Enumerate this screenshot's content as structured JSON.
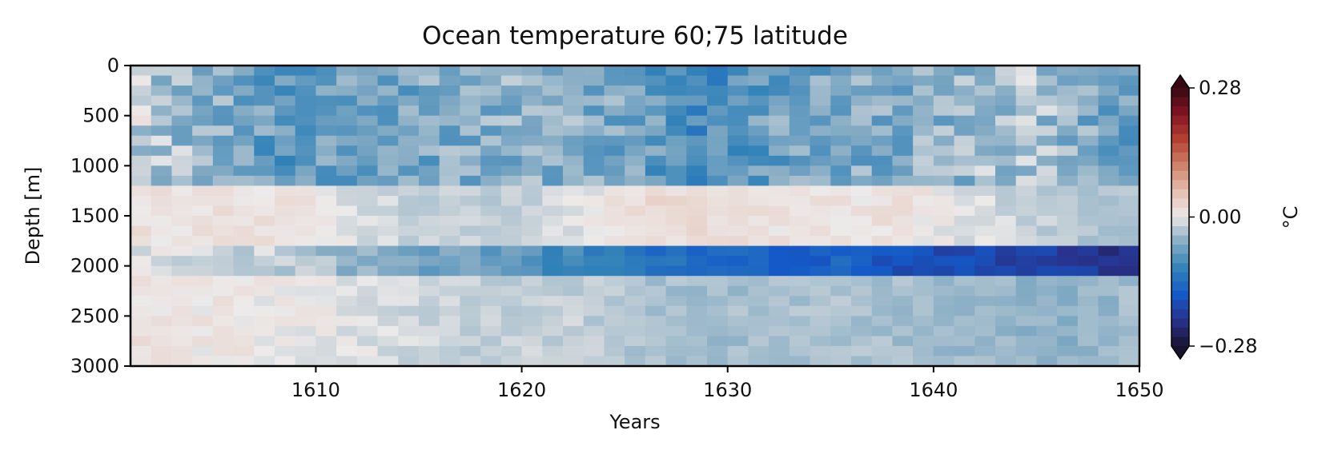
{
  "chart_data": {
    "type": "heatmap",
    "title": "Ocean temperature 60;75 latitude",
    "xlabel": "Years",
    "ylabel": "Depth [m]",
    "x_range": [
      1601,
      1650
    ],
    "y_range": [
      0,
      3000
    ],
    "y_inverted": true,
    "x_ticks": [
      1610,
      1620,
      1630,
      1640,
      1650
    ],
    "y_ticks": [
      0,
      500,
      1000,
      1500,
      2000,
      2500,
      3000
    ],
    "colorbar": {
      "label": "°C",
      "min": -0.28,
      "max": 0.28,
      "tick_labels": [
        "0.28",
        "0.00",
        "−0.28"
      ],
      "tick_values": [
        0.28,
        0.0,
        -0.28
      ],
      "extend": "both",
      "colormap": "balance (diverging blue–white–red)"
    },
    "depth_levels_m": [
      0,
      100,
      200,
      300,
      400,
      500,
      600,
      700,
      800,
      900,
      1000,
      1100,
      1200,
      1300,
      1400,
      1500,
      1600,
      1700,
      1800,
      1900,
      2000,
      2100,
      2200,
      2300,
      2400,
      2500,
      2600,
      2700,
      2800,
      2900
    ],
    "years": [
      1601,
      1602,
      1603,
      1604,
      1605,
      1606,
      1607,
      1608,
      1609,
      1610,
      1611,
      1612,
      1613,
      1614,
      1615,
      1616,
      1617,
      1618,
      1619,
      1620,
      1621,
      1622,
      1623,
      1624,
      1625,
      1626,
      1627,
      1628,
      1629,
      1630,
      1631,
      1632,
      1633,
      1634,
      1635,
      1636,
      1637,
      1638,
      1639,
      1640,
      1641,
      1642,
      1643,
      1644,
      1645,
      1646,
      1647,
      1648,
      1649
    ],
    "anomaly_structure": {
      "depth_0_1100": {
        "1601": -0.02,
        "1605": -0.06,
        "1608": -0.08,
        "1612": -0.07,
        "1616": -0.06,
        "1620": -0.05,
        "1624": -0.06,
        "1628": -0.1,
        "1632": -0.07,
        "1636": -0.06,
        "1640": -0.05,
        "1644": -0.03,
        "1648": -0.07
      },
      "depth_1200_1800": {
        "1601": 0.01,
        "1608": 0.01,
        "1614": -0.02,
        "1620": -0.02,
        "1626": 0.02,
        "1632": 0.01,
        "1638": 0.01,
        "1644": -0.02,
        "1648": -0.03
      },
      "depth_1800_2100": {
        "1601": -0.01,
        "1607": -0.02,
        "1612": -0.05,
        "1616": -0.07,
        "1620": -0.09,
        "1625": -0.13,
        "1630": -0.15,
        "1635": -0.16,
        "1640": -0.19,
        "1645": -0.2,
        "1649": -0.23
      },
      "depth_2100_3000": {
        "1601": 0.01,
        "1610": 0.0,
        "1616": -0.02,
        "1622": -0.02,
        "1628": -0.04,
        "1634": -0.03,
        "1640": -0.04,
        "1646": -0.05,
        "1649": -0.04
      }
    }
  }
}
